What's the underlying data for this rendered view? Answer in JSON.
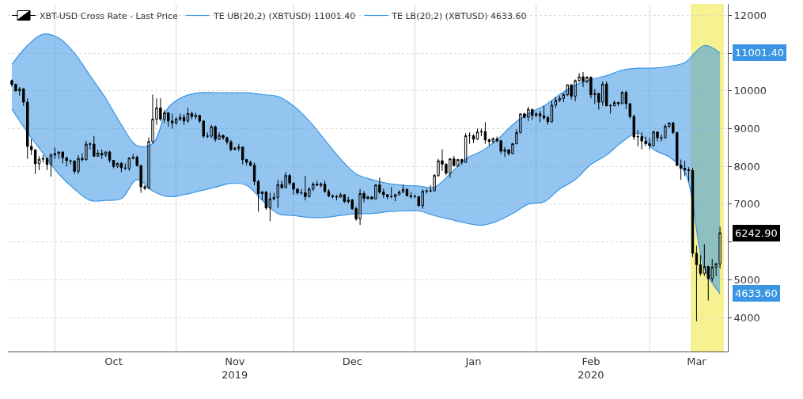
{
  "chart_data": {
    "type": "candlestick",
    "x": [
      "2019-09-20",
      "2019-09-21",
      "2019-09-22",
      "2019-09-23",
      "2019-09-24",
      "2019-09-25",
      "2019-09-26",
      "2019-09-27",
      "2019-09-28",
      "2019-09-29",
      "2019-09-30",
      "2019-10-01",
      "2019-10-02",
      "2019-10-03",
      "2019-10-04",
      "2019-10-05",
      "2019-10-06",
      "2019-10-07",
      "2019-10-08",
      "2019-10-09",
      "2019-10-10",
      "2019-10-11",
      "2019-10-12",
      "2019-10-13",
      "2019-10-14",
      "2019-10-15",
      "2019-10-16",
      "2019-10-17",
      "2019-10-18",
      "2019-10-19",
      "2019-10-20",
      "2019-10-21",
      "2019-10-22",
      "2019-10-23",
      "2019-10-24",
      "2019-10-25",
      "2019-10-26",
      "2019-10-27",
      "2019-10-28",
      "2019-10-29",
      "2019-10-30",
      "2019-10-31",
      "2019-11-01",
      "2019-11-02",
      "2019-11-03",
      "2019-11-04",
      "2019-11-05",
      "2019-11-06",
      "2019-11-07",
      "2019-11-08",
      "2019-11-09",
      "2019-11-10",
      "2019-11-11",
      "2019-11-12",
      "2019-11-13",
      "2019-11-14",
      "2019-11-15",
      "2019-11-16",
      "2019-11-17",
      "2019-11-18",
      "2019-11-19",
      "2019-11-20",
      "2019-11-21",
      "2019-11-22",
      "2019-11-23",
      "2019-11-24",
      "2019-11-25",
      "2019-11-26",
      "2019-11-27",
      "2019-11-28",
      "2019-11-29",
      "2019-11-30",
      "2019-12-01",
      "2019-12-02",
      "2019-12-03",
      "2019-12-04",
      "2019-12-05",
      "2019-12-06",
      "2019-12-07",
      "2019-12-08",
      "2019-12-09",
      "2019-12-10",
      "2019-12-11",
      "2019-12-12",
      "2019-12-13",
      "2019-12-14",
      "2019-12-15",
      "2019-12-16",
      "2019-12-17",
      "2019-12-18",
      "2019-12-19",
      "2019-12-20",
      "2019-12-21",
      "2019-12-22",
      "2019-12-23",
      "2019-12-24",
      "2019-12-25",
      "2019-12-26",
      "2019-12-27",
      "2019-12-28",
      "2019-12-29",
      "2019-12-30",
      "2019-12-31",
      "2020-01-01",
      "2020-01-02",
      "2020-01-03",
      "2020-01-04",
      "2020-01-05",
      "2020-01-06",
      "2020-01-07",
      "2020-01-08",
      "2020-01-09",
      "2020-01-10",
      "2020-01-11",
      "2020-01-12",
      "2020-01-13",
      "2020-01-14",
      "2020-01-15",
      "2020-01-16",
      "2020-01-17",
      "2020-01-18",
      "2020-01-19",
      "2020-01-20",
      "2020-01-21",
      "2020-01-22",
      "2020-01-23",
      "2020-01-24",
      "2020-01-25",
      "2020-01-26",
      "2020-01-27",
      "2020-01-28",
      "2020-01-29",
      "2020-01-30",
      "2020-01-31",
      "2020-02-01",
      "2020-02-02",
      "2020-02-03",
      "2020-02-04",
      "2020-02-05",
      "2020-02-06",
      "2020-02-07",
      "2020-02-08",
      "2020-02-09",
      "2020-02-10",
      "2020-02-11",
      "2020-02-12",
      "2020-02-13",
      "2020-02-14",
      "2020-02-15",
      "2020-02-16",
      "2020-02-17",
      "2020-02-18",
      "2020-02-19",
      "2020-02-20",
      "2020-02-21",
      "2020-02-22",
      "2020-02-23",
      "2020-02-24",
      "2020-02-25",
      "2020-02-26",
      "2020-02-27",
      "2020-02-28",
      "2020-02-29",
      "2020-03-01",
      "2020-03-02",
      "2020-03-03",
      "2020-03-04",
      "2020-03-05",
      "2020-03-06",
      "2020-03-07",
      "2020-03-08",
      "2020-03-09",
      "2020-03-10",
      "2020-03-11",
      "2020-03-12",
      "2020-03-13",
      "2020-03-14",
      "2020-03-15",
      "2020-03-16",
      "2020-03-17",
      "2020-03-18",
      "2020-03-19"
    ],
    "series": [
      {
        "name": "TE UB(20,2) (XBTUSD) 11001.40",
        "type": "line",
        "color": "#3a96e4",
        "x": [
          "2019-09-20",
          "2019-09-24",
          "2019-09-28",
          "2019-10-02",
          "2019-10-06",
          "2019-10-10",
          "2019-10-14",
          "2019-10-18",
          "2019-10-22",
          "2019-10-26",
          "2019-10-30",
          "2019-11-03",
          "2019-11-07",
          "2019-11-11",
          "2019-11-15",
          "2019-11-19",
          "2019-11-23",
          "2019-11-27",
          "2019-12-01",
          "2019-12-05",
          "2019-12-09",
          "2019-12-13",
          "2019-12-17",
          "2019-12-21",
          "2019-12-25",
          "2019-12-29",
          "2020-01-02",
          "2020-01-06",
          "2020-01-10",
          "2020-01-14",
          "2020-01-18",
          "2020-01-22",
          "2020-01-26",
          "2020-01-30",
          "2020-02-03",
          "2020-02-07",
          "2020-02-11",
          "2020-02-15",
          "2020-02-19",
          "2020-02-23",
          "2020-02-27",
          "2020-03-02",
          "2020-03-06",
          "2020-03-10",
          "2020-03-15",
          "2020-03-19"
        ],
        "values": [
          10700,
          11200,
          11500,
          11400,
          11000,
          10400,
          9800,
          9100,
          8550,
          8600,
          9560,
          9850,
          9950,
          9950,
          9950,
          9950,
          9900,
          9850,
          9600,
          9200,
          8700,
          8200,
          7800,
          7650,
          7550,
          7500,
          7480,
          7450,
          7800,
          8200,
          8400,
          8700,
          9100,
          9400,
          9600,
          9900,
          10150,
          10300,
          10400,
          10550,
          10600,
          10600,
          10650,
          10750,
          11200,
          11001.4
        ],
        "upper": [
          10700,
          11200,
          11500,
          11400,
          11000,
          10400,
          9800,
          9100,
          8550,
          8600,
          9560,
          9850,
          9950,
          9950,
          9950,
          9950,
          9900,
          9850,
          9600,
          9200,
          8700,
          8200,
          7800,
          7650,
          7550,
          7500,
          7480,
          7450,
          7800,
          8200,
          8400,
          8700,
          9100,
          9400,
          9600,
          9900,
          10150,
          10300,
          10400,
          10550,
          10600,
          10600,
          10650,
          10750,
          11200,
          11001.4
        ],
        "lower": [
          9520,
          8900,
          8340,
          7800,
          7400,
          7100,
          7100,
          7150,
          7650,
          7350,
          7200,
          7250,
          7350,
          7450,
          7550,
          7500,
          7100,
          6750,
          6700,
          6650,
          6650,
          6700,
          6750,
          6750,
          6800,
          6820,
          6820,
          6700,
          6600,
          6500,
          6440,
          6550,
          6750,
          7000,
          7060,
          7400,
          7650,
          8050,
          8300,
          8650,
          8880,
          8450,
          8250,
          7850,
          5300,
          4633.6
        ]
      },
      {
        "name": "TE LB(20,2) (XBTUSD) 4633.60",
        "type": "line",
        "color": "#3a96e4",
        "x": [
          "2019-09-20",
          "2019-09-24",
          "2019-09-28",
          "2019-10-02",
          "2019-10-06",
          "2019-10-10",
          "2019-10-14",
          "2019-10-18",
          "2019-10-22",
          "2019-10-26",
          "2019-10-30",
          "2019-11-03",
          "2019-11-07",
          "2019-11-11",
          "2019-11-15",
          "2019-11-19",
          "2019-11-23",
          "2019-11-27",
          "2019-12-01",
          "2019-12-05",
          "2019-12-09",
          "2019-12-13",
          "2019-12-17",
          "2019-12-21",
          "2019-12-25",
          "2019-12-29",
          "2020-01-02",
          "2020-01-06",
          "2020-01-10",
          "2020-01-14",
          "2020-01-18",
          "2020-01-22",
          "2020-01-26",
          "2020-01-30",
          "2020-02-03",
          "2020-02-07",
          "2020-02-11",
          "2020-02-15",
          "2020-02-19",
          "2020-02-23",
          "2020-02-27",
          "2020-03-02",
          "2020-03-06",
          "2020-03-10",
          "2020-03-15",
          "2020-03-19"
        ],
        "values": [
          9520,
          8900,
          8340,
          7800,
          7400,
          7100,
          7100,
          7150,
          7650,
          7350,
          7200,
          7250,
          7350,
          7450,
          7550,
          7500,
          7100,
          6750,
          6700,
          6650,
          6650,
          6700,
          6750,
          6750,
          6800,
          6820,
          6820,
          6700,
          6600,
          6500,
          6440,
          6550,
          6750,
          7000,
          7060,
          7400,
          7650,
          8050,
          8300,
          8650,
          8880,
          8450,
          8250,
          7850,
          5300,
          4633.6
        ]
      },
      {
        "name": "XBT-USD Cross Rate - Last Price",
        "color": "#000000",
        "ohlc": [
          [
            10270,
            10300,
            10100,
            10170
          ],
          [
            10170,
            10190,
            9980,
            10000
          ],
          [
            10000,
            10100,
            9870,
            10050
          ],
          [
            10050,
            10080,
            9600,
            9700
          ],
          [
            9700,
            9800,
            8200,
            8530
          ],
          [
            8530,
            8730,
            8300,
            8440
          ],
          [
            8440,
            8450,
            7800,
            8070
          ],
          [
            8070,
            8270,
            7900,
            8190
          ],
          [
            8190,
            8300,
            8100,
            8210
          ],
          [
            8210,
            8230,
            7900,
            8050
          ],
          [
            8050,
            8350,
            7730,
            8300
          ],
          [
            8300,
            8500,
            8200,
            8340
          ],
          [
            8340,
            8400,
            8200,
            8380
          ],
          [
            8380,
            8400,
            8080,
            8230
          ],
          [
            8230,
            8250,
            8000,
            8150
          ],
          [
            8150,
            8180,
            8050,
            8140
          ],
          [
            8140,
            8170,
            7800,
            7870
          ],
          [
            7870,
            8300,
            7800,
            8210
          ],
          [
            8210,
            8350,
            8120,
            8180
          ],
          [
            8180,
            8680,
            8150,
            8590
          ],
          [
            8590,
            8640,
            8450,
            8590
          ],
          [
            8590,
            8800,
            8250,
            8270
          ],
          [
            8270,
            8440,
            8250,
            8350
          ],
          [
            8350,
            8450,
            8200,
            8300
          ],
          [
            8300,
            8400,
            8250,
            8380
          ],
          [
            8380,
            8420,
            8100,
            8160
          ],
          [
            8160,
            8170,
            7950,
            8000
          ],
          [
            8000,
            8100,
            7960,
            8080
          ],
          [
            8080,
            8120,
            7850,
            7960
          ],
          [
            7960,
            8080,
            7900,
            7950
          ],
          [
            7950,
            8250,
            7880,
            8220
          ],
          [
            8220,
            8330,
            8180,
            8240
          ],
          [
            8240,
            8290,
            8000,
            8020
          ],
          [
            8020,
            8040,
            7300,
            7460
          ],
          [
            7460,
            7500,
            7370,
            7420
          ],
          [
            7420,
            8770,
            7400,
            8660
          ],
          [
            8660,
            9900,
            8600,
            9250
          ],
          [
            9250,
            9800,
            9100,
            9550
          ],
          [
            9550,
            9800,
            9200,
            9250
          ],
          [
            9250,
            9500,
            9150,
            9420
          ],
          [
            9420,
            9430,
            9050,
            9200
          ],
          [
            9200,
            9400,
            9000,
            9150
          ],
          [
            9150,
            9300,
            9100,
            9250
          ],
          [
            9250,
            9400,
            9200,
            9300
          ],
          [
            9300,
            9380,
            9100,
            9200
          ],
          [
            9200,
            9550,
            9150,
            9400
          ],
          [
            9400,
            9450,
            9250,
            9320
          ],
          [
            9320,
            9420,
            9250,
            9350
          ],
          [
            9350,
            9360,
            9150,
            9200
          ],
          [
            9200,
            9220,
            8750,
            8800
          ],
          [
            8800,
            8900,
            8750,
            8800
          ],
          [
            8800,
            9100,
            8750,
            9050
          ],
          [
            9050,
            9080,
            8650,
            8720
          ],
          [
            8720,
            8900,
            8700,
            8820
          ],
          [
            8820,
            8840,
            8700,
            8760
          ],
          [
            8760,
            8790,
            8580,
            8650
          ],
          [
            8650,
            8700,
            8400,
            8450
          ],
          [
            8450,
            8520,
            8420,
            8480
          ],
          [
            8480,
            8600,
            8400,
            8510
          ],
          [
            8510,
            8520,
            8050,
            8180
          ],
          [
            8180,
            8200,
            8030,
            8110
          ],
          [
            8110,
            8150,
            8000,
            8030
          ],
          [
            8030,
            8100,
            7500,
            7600
          ],
          [
            7600,
            7650,
            6800,
            7280
          ],
          [
            7280,
            7350,
            7100,
            7320
          ],
          [
            7320,
            7350,
            6850,
            6900
          ],
          [
            6900,
            7300,
            6550,
            7140
          ],
          [
            7140,
            7300,
            7100,
            7180
          ],
          [
            7180,
            7650,
            6900,
            7520
          ],
          [
            7520,
            7620,
            7400,
            7440
          ],
          [
            7440,
            7850,
            7420,
            7760
          ],
          [
            7760,
            7800,
            7500,
            7560
          ],
          [
            7560,
            7570,
            7250,
            7400
          ],
          [
            7400,
            7420,
            7250,
            7300
          ],
          [
            7300,
            7400,
            7250,
            7300
          ],
          [
            7300,
            7750,
            7100,
            7200
          ],
          [
            7200,
            7450,
            7180,
            7400
          ],
          [
            7400,
            7580,
            7350,
            7530
          ],
          [
            7530,
            7620,
            7480,
            7500
          ],
          [
            7500,
            7580,
            7450,
            7530
          ],
          [
            7530,
            7620,
            7300,
            7340
          ],
          [
            7340,
            7400,
            7180,
            7220
          ],
          [
            7220,
            7260,
            7150,
            7200
          ],
          [
            7200,
            7250,
            7100,
            7190
          ],
          [
            7190,
            7300,
            7170,
            7250
          ],
          [
            7250,
            7270,
            7030,
            7070
          ],
          [
            7070,
            7200,
            7020,
            7110
          ],
          [
            7110,
            7140,
            6850,
            6880
          ],
          [
            6880,
            6940,
            6560,
            6610
          ],
          [
            6610,
            7400,
            6450,
            7280
          ],
          [
            7280,
            7350,
            7050,
            7150
          ],
          [
            7150,
            7220,
            7120,
            7190
          ],
          [
            7190,
            7200,
            7120,
            7140
          ],
          [
            7140,
            7520,
            7130,
            7510
          ],
          [
            7510,
            7700,
            7270,
            7320
          ],
          [
            7320,
            7420,
            7160,
            7250
          ],
          [
            7250,
            7270,
            7130,
            7200
          ],
          [
            7200,
            7450,
            7150,
            7200
          ],
          [
            7200,
            7280,
            7080,
            7250
          ],
          [
            7250,
            7360,
            7240,
            7320
          ],
          [
            7320,
            7520,
            7300,
            7390
          ],
          [
            7390,
            7420,
            7220,
            7220
          ],
          [
            7220,
            7320,
            7150,
            7200
          ],
          [
            7200,
            7260,
            7160,
            7200
          ],
          [
            7200,
            7210,
            6930,
            6960
          ],
          [
            6960,
            7400,
            6880,
            7340
          ],
          [
            7340,
            7400,
            7280,
            7350
          ],
          [
            7350,
            7500,
            7320,
            7350
          ],
          [
            7350,
            7800,
            7350,
            7760
          ],
          [
            7760,
            8200,
            7720,
            8150
          ],
          [
            8150,
            8450,
            7880,
            8060
          ],
          [
            8060,
            8080,
            7770,
            7820
          ],
          [
            7820,
            8200,
            7700,
            8200
          ],
          [
            8200,
            8280,
            8000,
            8020
          ],
          [
            8020,
            8200,
            7980,
            8180
          ],
          [
            8180,
            8200,
            8050,
            8110
          ],
          [
            8110,
            8880,
            8100,
            8810
          ],
          [
            8810,
            8900,
            8600,
            8810
          ],
          [
            8810,
            8850,
            8620,
            8720
          ],
          [
            8720,
            9000,
            8700,
            8910
          ],
          [
            8910,
            9000,
            8800,
            8920
          ],
          [
            8920,
            9170,
            8600,
            8700
          ],
          [
            8700,
            8740,
            8550,
            8660
          ],
          [
            8660,
            8770,
            8600,
            8730
          ],
          [
            8730,
            8790,
            8630,
            8680
          ],
          [
            8680,
            8690,
            8330,
            8400
          ],
          [
            8400,
            8520,
            8250,
            8440
          ],
          [
            8440,
            8450,
            8290,
            8340
          ],
          [
            8340,
            8620,
            8320,
            8600
          ],
          [
            8600,
            8980,
            8580,
            8900
          ],
          [
            8900,
            9400,
            8870,
            9390
          ],
          [
            9390,
            9420,
            9270,
            9300
          ],
          [
            9300,
            9580,
            9200,
            9510
          ],
          [
            9510,
            9520,
            9230,
            9350
          ],
          [
            9350,
            9440,
            9300,
            9390
          ],
          [
            9390,
            9470,
            9170,
            9340
          ],
          [
            9340,
            9600,
            9230,
            9290
          ],
          [
            9290,
            9340,
            9100,
            9180
          ],
          [
            9180,
            9730,
            9160,
            9620
          ],
          [
            9620,
            9830,
            9550,
            9750
          ],
          [
            9750,
            9870,
            9700,
            9800
          ],
          [
            9800,
            9940,
            9700,
            9900
          ],
          [
            9900,
            10160,
            9860,
            10160
          ],
          [
            10160,
            10170,
            9770,
            9860
          ],
          [
            9860,
            10300,
            9720,
            10270
          ],
          [
            10270,
            10470,
            10230,
            10370
          ],
          [
            10370,
            10500,
            10100,
            10250
          ],
          [
            10250,
            10390,
            10200,
            10360
          ],
          [
            10360,
            10380,
            9800,
            9900
          ],
          [
            9900,
            10050,
            9650,
            9930
          ],
          [
            9930,
            9950,
            9500,
            9700
          ],
          [
            9700,
            10250,
            9600,
            10180
          ],
          [
            10180,
            10250,
            9600,
            9600
          ],
          [
            9600,
            9650,
            9400,
            9610
          ],
          [
            9610,
            9740,
            9580,
            9690
          ],
          [
            9690,
            9710,
            9600,
            9660
          ],
          [
            9660,
            9990,
            9650,
            9960
          ],
          [
            9960,
            10000,
            9520,
            9660
          ],
          [
            9660,
            9670,
            9260,
            9320
          ],
          [
            9320,
            9370,
            8700,
            8780
          ],
          [
            8780,
            8960,
            8530,
            8790
          ],
          [
            8790,
            8900,
            8450,
            8670
          ],
          [
            8670,
            8790,
            8540,
            8600
          ],
          [
            8600,
            8750,
            8450,
            8550
          ],
          [
            8550,
            8950,
            8530,
            8910
          ],
          [
            8910,
            8910,
            8660,
            8760
          ],
          [
            8760,
            8850,
            8660,
            8750
          ],
          [
            8750,
            9120,
            8740,
            9060
          ],
          [
            9060,
            9170,
            9020,
            9150
          ],
          [
            9150,
            9180,
            8850,
            8900
          ],
          [
            8900,
            8900,
            8000,
            8030
          ],
          [
            8030,
            8180,
            7650,
            7950
          ],
          [
            7950,
            8150,
            7740,
            7910
          ],
          [
            7910,
            7980,
            7600,
            7890
          ],
          [
            7890,
            7960,
            5600,
            5700
          ],
          [
            5700,
            5900,
            3900,
            5400
          ],
          [
            5400,
            5650,
            5100,
            5170
          ],
          [
            5170,
            5940,
            5100,
            5350
          ],
          [
            5350,
            5370,
            4450,
            5030
          ],
          [
            5030,
            5550,
            4950,
            5330
          ],
          [
            5330,
            5450,
            5100,
            5420
          ],
          [
            5420,
            6400,
            5300,
            6242.9
          ]
        ]
      }
    ],
    "annotations": [
      {
        "text": "11001.40",
        "x": "2020-03-19",
        "y": 11001.4
      },
      {
        "text": "4633.60",
        "x": "2020-03-19",
        "y": 4633.6
      },
      {
        "text": "6242.90",
        "x": "2020-03-19",
        "y": 6242.9
      }
    ],
    "bands": [
      {
        "axis": "x",
        "from": "2020-03-11T12:00",
        "to": "2020-03-20",
        "color": "#f3ee6c"
      }
    ],
    "xlim": [
      "2019-09-19",
      "2020-03-21"
    ],
    "xticks": [
      {
        "value": "2019-10-01",
        "label": null
      },
      {
        "value": "2019-10-16",
        "label": "Oct"
      },
      {
        "value": "2019-11-01",
        "label": null
      },
      {
        "value": "2019-11-16",
        "label": "Nov\n2019"
      },
      {
        "value": "2019-12-01",
        "label": null
      },
      {
        "value": "2019-12-16",
        "label": "Dec"
      },
      {
        "value": "2020-01-01",
        "label": null
      },
      {
        "value": "2020-01-16",
        "label": "Jan"
      },
      {
        "value": "2020-02-01",
        "label": null
      },
      {
        "value": "2020-02-15",
        "label": "Feb\n2020"
      },
      {
        "value": "2020-03-01",
        "label": null
      },
      {
        "value": "2020-03-13",
        "label": "Mar"
      }
    ],
    "ylim": [
      3100,
      12300
    ],
    "yticks": [
      4000,
      5000,
      {
        "value": 6000,
        "label": null
      },
      7000,
      8000,
      9000,
      10000,
      {
        "value": 11000,
        "label": null
      },
      12000
    ],
    "grid": true,
    "legend": "top left"
  }
}
